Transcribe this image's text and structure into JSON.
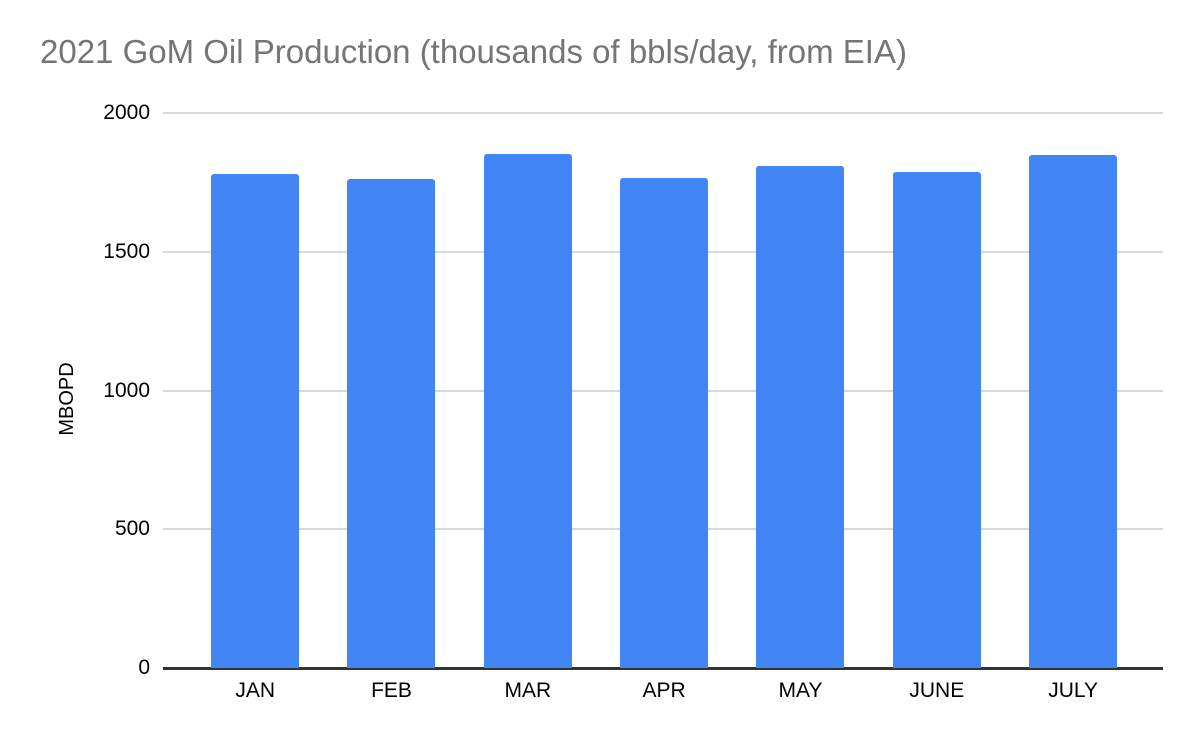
{
  "chart_data": {
    "type": "bar",
    "title": "2021 GoM Oil Production (thousands of bbls/day, from EIA)",
    "ylabel": "MBOPD",
    "xlabel": "",
    "categories": [
      "JAN",
      "FEB",
      "MAR",
      "APR",
      "MAY",
      "JUNE",
      "JULY"
    ],
    "values": [
      1780,
      1761,
      1853,
      1766,
      1810,
      1788,
      1849
    ],
    "ylim": [
      0,
      2000
    ],
    "yticks": [
      0,
      500,
      1000,
      1500,
      2000
    ],
    "grid": true,
    "legend": "none"
  },
  "colors": {
    "bar": "#4285F4",
    "title_text": "#757575",
    "gridline": "#d9d9d9",
    "axis_line": "#333333",
    "tick_text": "#000000"
  }
}
